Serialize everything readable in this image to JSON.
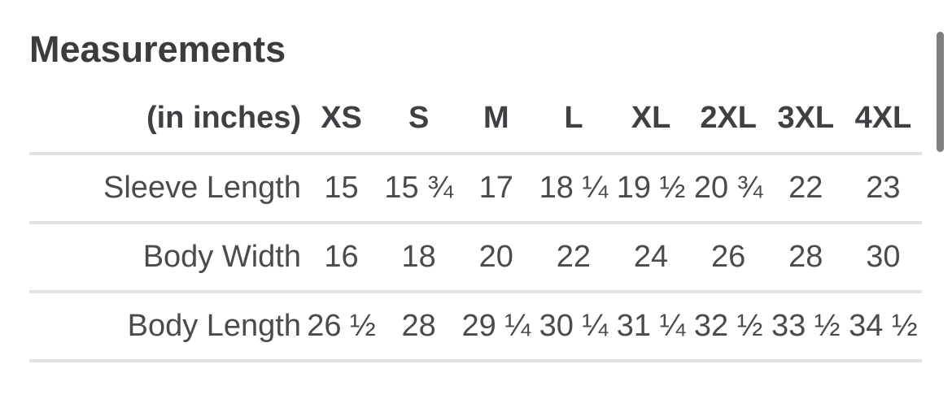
{
  "page": {
    "title": "Measurements",
    "colors": {
      "title": "#3c3c3c",
      "header_text": "#3f4043",
      "body_text": "#4a4b4d",
      "divider": "#e2e2e5",
      "scrollbar": "#7f7f7f",
      "background": "#ffffff"
    }
  },
  "table": {
    "unit_label": "(in inches)",
    "columns": [
      "XS",
      "S",
      "M",
      "L",
      "XL",
      "2XL",
      "3XL",
      "4XL"
    ],
    "rows": [
      {
        "label": "Sleeve Length",
        "values": [
          "15",
          "15 ¾",
          "17",
          "18 ¼",
          "19 ½",
          "20 ¾",
          "22",
          "23"
        ]
      },
      {
        "label": "Body Width",
        "values": [
          "16",
          "18",
          "20",
          "22",
          "24",
          "26",
          "28",
          "30"
        ]
      },
      {
        "label": "Body Length",
        "values": [
          "26 ½",
          "28",
          "29 ¼",
          "30 ¼",
          "31 ¼",
          "32 ½",
          "33 ½",
          "34 ½"
        ]
      }
    ]
  },
  "chart_data": {
    "type": "table",
    "title": "Measurements",
    "unit": "inches",
    "categories": [
      "XS",
      "S",
      "M",
      "L",
      "XL",
      "2XL",
      "3XL",
      "4XL"
    ],
    "series": [
      {
        "name": "Sleeve Length",
        "values": [
          15,
          15.75,
          17,
          18.25,
          19.5,
          20.75,
          22,
          23
        ]
      },
      {
        "name": "Body Width",
        "values": [
          16,
          18,
          20,
          22,
          24,
          26,
          28,
          30
        ]
      },
      {
        "name": "Body Length",
        "values": [
          26.5,
          28,
          29.25,
          30.25,
          31.25,
          32.5,
          33.5,
          34.5
        ]
      }
    ]
  }
}
